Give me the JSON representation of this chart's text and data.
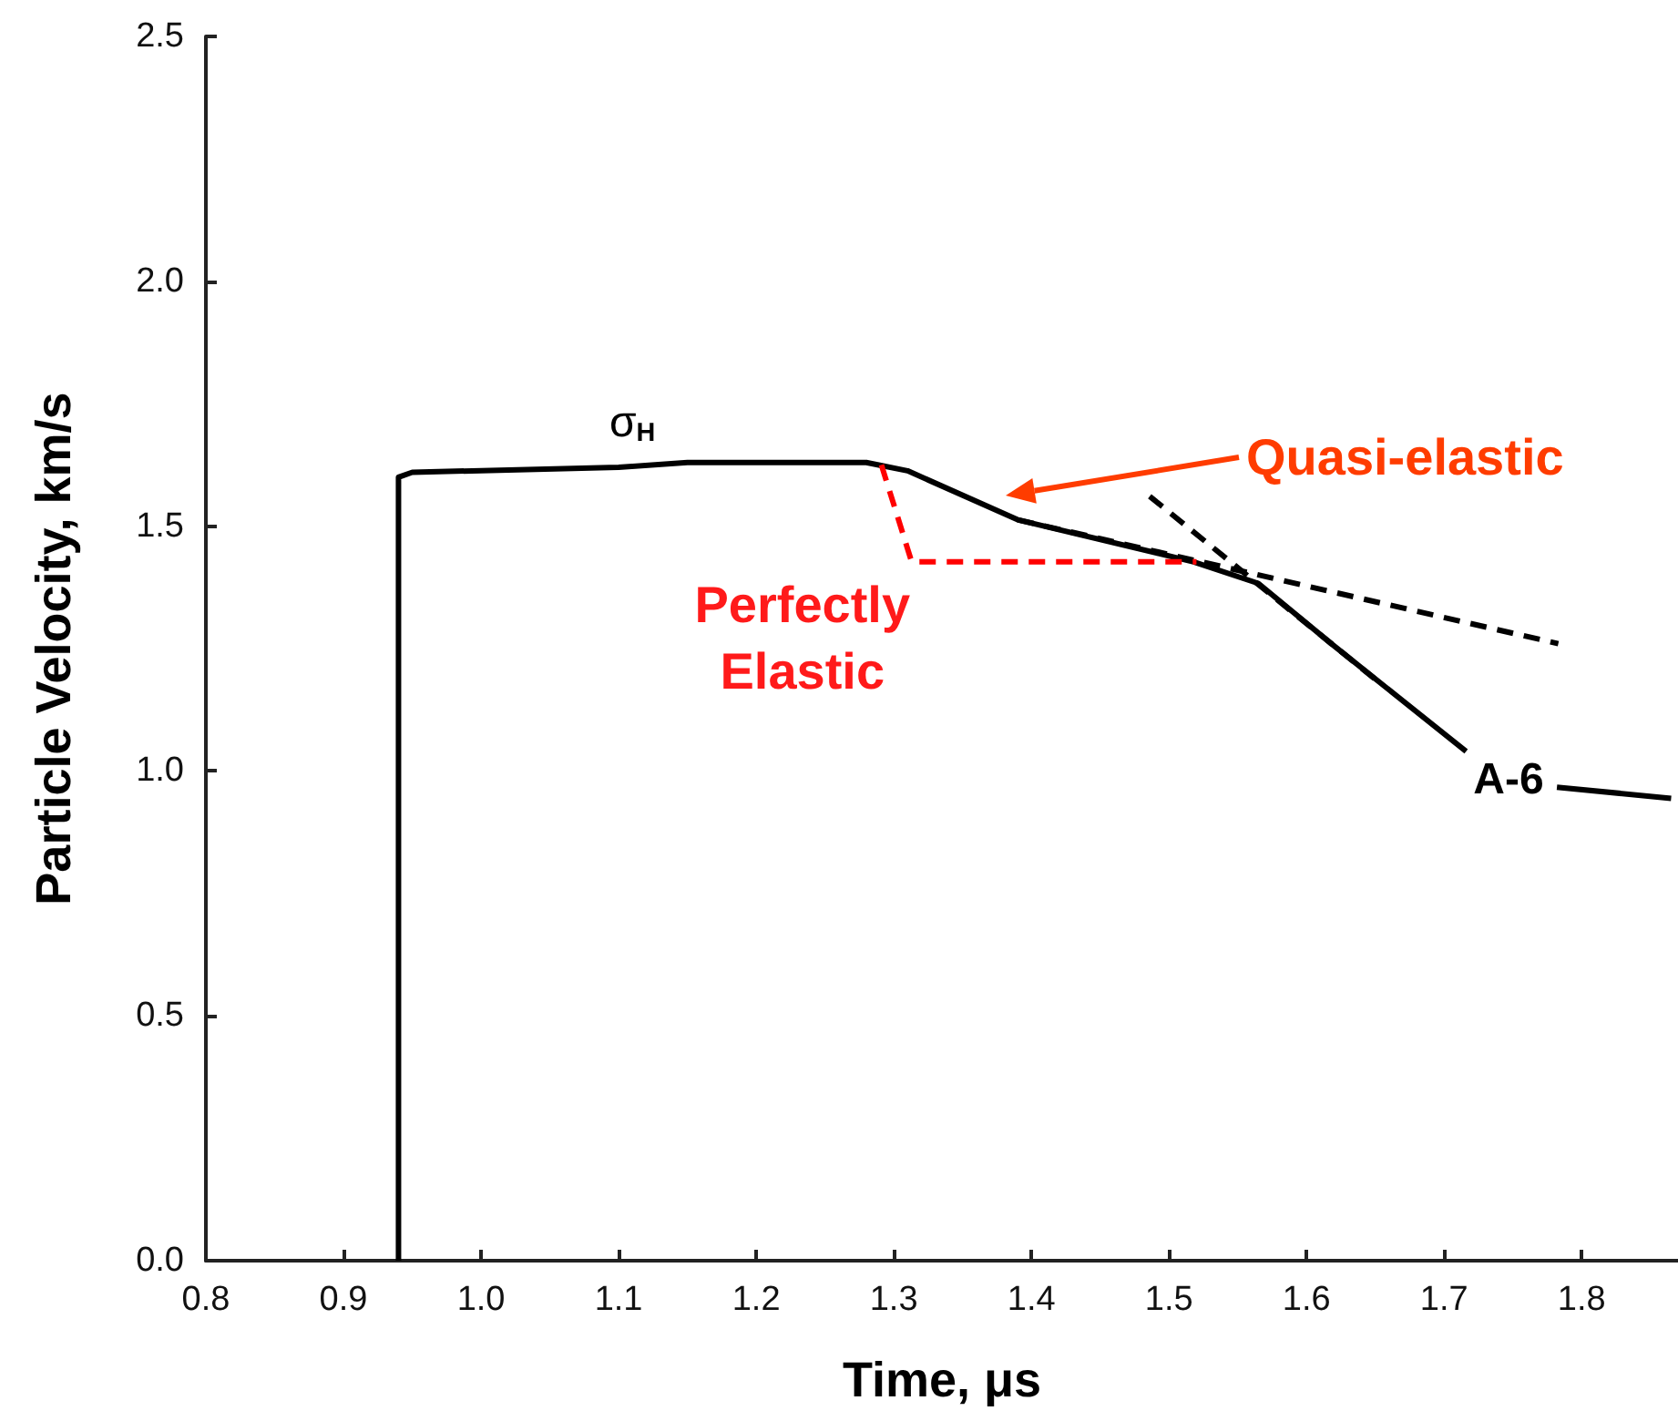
{
  "chart_data": {
    "type": "line",
    "xlabel": "Time, μs",
    "ylabel": "Particle Velocity, km/s",
    "xlim": [
      0.8,
      1.87
    ],
    "ylim": [
      0,
      2.5
    ],
    "xticks": [
      0.8,
      0.9,
      {
        "value": 1,
        "label": "1.0"
      },
      1.1,
      1.2,
      1.3,
      1.4,
      1.5,
      1.6,
      1.7,
      1.8
    ],
    "yticks": [
      {
        "value": 0,
        "label": "0.0"
      },
      {
        "value": 0.5,
        "label": "0.5"
      },
      {
        "value": 1,
        "label": "1.0"
      },
      {
        "value": 1.5,
        "label": "1.5"
      },
      {
        "value": 2,
        "label": "2.0"
      },
      {
        "value": 2.5,
        "label": "2.5"
      }
    ],
    "grid": false,
    "marker": "none",
    "series": [
      {
        "color": "#000000",
        "line_style": "solid",
        "x": [
          0.94,
          0.94,
          0.95,
          1.1,
          1.15,
          1.28,
          1.31,
          1.39,
          1.518,
          1.565,
          1.618,
          1.716,
          1.74,
          1.782,
          1.865
        ],
        "values": [
          0,
          1.6,
          1.61,
          1.62,
          1.63,
          1.63,
          1.613,
          1.513,
          1.427,
          1.383,
          1.26,
          1.04,
          null,
          0.967,
          0.944
        ]
      },
      {
        "color": "#000000",
        "line_style": "dashed",
        "x": [
          1.39,
          1.783
        ],
        "values": [
          1.513,
          1.26
        ]
      },
      {
        "color": "#000000",
        "line_style": "dashed",
        "x": [
          1.486,
          1.654
        ],
        "values": [
          1.561,
          1.178
        ]
      },
      {
        "color": "#ff0000",
        "line_style": "dashed",
        "x": [
          1.291,
          1.313,
          1.52
        ],
        "values": [
          1.625,
          1.427,
          1.427
        ]
      }
    ],
    "annotations": [
      {
        "text": "σ$_{H}$",
        "x": 1.11,
        "y": 1.63
      },
      {
        "text": "Perfectly\nElastic",
        "x": 1.313,
        "y": 1.427
      },
      "Quasi-elastic",
      "A-6"
    ]
  }
}
